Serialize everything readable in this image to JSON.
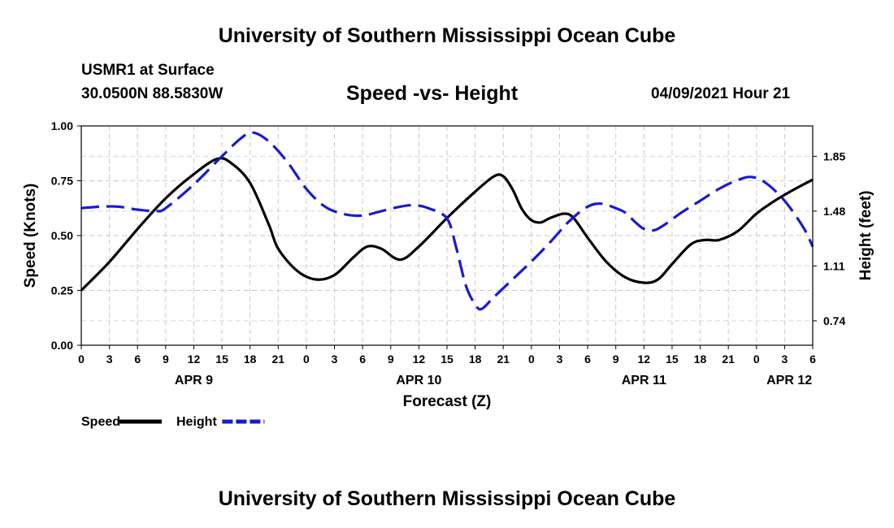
{
  "header": {
    "title": "University of Southern Mississippi Ocean Cube",
    "station": "USMR1 at Surface",
    "coordinates": "30.0500N  88.5830W",
    "chart_title": "Speed -vs- Height",
    "run_time": "04/09/2021 Hour 21"
  },
  "footer": {
    "title": "University of Southern Mississippi Ocean Cube"
  },
  "chart_data": {
    "type": "line",
    "title": "Speed -vs- Height",
    "xlabel": "Forecast (Z)",
    "ylabel": "Speed (Knots)",
    "y2label": "Height (feet)",
    "x_unit": "forecast hours from APR 9 00Z",
    "xlim": [
      0,
      78
    ],
    "ylim": [
      0,
      1.0
    ],
    "y2lim": [
      0.575,
      2.055
    ],
    "grid": true,
    "x_ticks": [
      {
        "x": 0,
        "label": "0"
      },
      {
        "x": 3,
        "label": "3"
      },
      {
        "x": 6,
        "label": "6"
      },
      {
        "x": 9,
        "label": "9"
      },
      {
        "x": 12,
        "label": "12"
      },
      {
        "x": 15,
        "label": "15"
      },
      {
        "x": 18,
        "label": "18"
      },
      {
        "x": 21,
        "label": "21"
      },
      {
        "x": 24,
        "label": "0"
      },
      {
        "x": 27,
        "label": "3"
      },
      {
        "x": 30,
        "label": "6"
      },
      {
        "x": 33,
        "label": "9"
      },
      {
        "x": 36,
        "label": "12"
      },
      {
        "x": 39,
        "label": "15"
      },
      {
        "x": 42,
        "label": "18"
      },
      {
        "x": 45,
        "label": "21"
      },
      {
        "x": 48,
        "label": "0"
      },
      {
        "x": 51,
        "label": "3"
      },
      {
        "x": 54,
        "label": "6"
      },
      {
        "x": 57,
        "label": "9"
      },
      {
        "x": 60,
        "label": "12"
      },
      {
        "x": 63,
        "label": "15"
      },
      {
        "x": 66,
        "label": "18"
      },
      {
        "x": 69,
        "label": "21"
      },
      {
        "x": 72,
        "label": "0"
      },
      {
        "x": 75,
        "label": "3"
      },
      {
        "x": 78,
        "label": "6"
      }
    ],
    "date_labels": [
      {
        "x": 12,
        "label": "APR 9"
      },
      {
        "x": 36,
        "label": "APR 10"
      },
      {
        "x": 60,
        "label": "APR 11"
      },
      {
        "x": 75.5,
        "label": "APR 12"
      }
    ],
    "y_ticks": [
      {
        "v": 0.0,
        "label": "0.00"
      },
      {
        "v": 0.25,
        "label": "0.25"
      },
      {
        "v": 0.5,
        "label": "0.50"
      },
      {
        "v": 0.75,
        "label": "0.75"
      },
      {
        "v": 1.0,
        "label": "1.00"
      }
    ],
    "y2_ticks": [
      {
        "v": 0.74,
        "label": "0.74"
      },
      {
        "v": 1.11,
        "label": "1.11"
      },
      {
        "v": 1.48,
        "label": "1.48"
      },
      {
        "v": 1.85,
        "label": "1.85"
      }
    ],
    "series": [
      {
        "name": "Speed",
        "axis": "left",
        "color": "#000000",
        "dash": "solid",
        "points": [
          [
            0,
            0.25
          ],
          [
            3,
            0.38
          ],
          [
            6,
            0.53
          ],
          [
            9,
            0.67
          ],
          [
            12,
            0.78
          ],
          [
            14.5,
            0.85
          ],
          [
            16,
            0.83
          ],
          [
            18,
            0.74
          ],
          [
            20,
            0.55
          ],
          [
            21,
            0.44
          ],
          [
            23,
            0.34
          ],
          [
            25,
            0.3
          ],
          [
            27,
            0.32
          ],
          [
            29,
            0.4
          ],
          [
            30.5,
            0.45
          ],
          [
            32,
            0.44
          ],
          [
            34,
            0.39
          ],
          [
            36,
            0.45
          ],
          [
            39,
            0.58
          ],
          [
            42,
            0.7
          ],
          [
            44,
            0.77
          ],
          [
            45,
            0.77
          ],
          [
            46,
            0.71
          ],
          [
            47,
            0.62
          ],
          [
            48,
            0.57
          ],
          [
            49,
            0.56
          ],
          [
            50,
            0.58
          ],
          [
            51.5,
            0.6
          ],
          [
            52.5,
            0.58
          ],
          [
            54,
            0.49
          ],
          [
            56,
            0.38
          ],
          [
            58,
            0.31
          ],
          [
            60,
            0.285
          ],
          [
            61.5,
            0.3
          ],
          [
            63,
            0.37
          ],
          [
            65,
            0.46
          ],
          [
            66.5,
            0.48
          ],
          [
            68,
            0.48
          ],
          [
            70,
            0.52
          ],
          [
            72,
            0.6
          ],
          [
            74,
            0.66
          ],
          [
            76,
            0.71
          ],
          [
            78,
            0.755
          ]
        ]
      },
      {
        "name": "Height",
        "axis": "right",
        "color": "#1a1ad0",
        "dash": "dashed",
        "points": [
          [
            0,
            1.5
          ],
          [
            2,
            1.51
          ],
          [
            4,
            1.51
          ],
          [
            6,
            1.49
          ],
          [
            8,
            1.48
          ],
          [
            9,
            1.5
          ],
          [
            12,
            1.66
          ],
          [
            15,
            1.85
          ],
          [
            17,
            1.97
          ],
          [
            18.3,
            2.01
          ],
          [
            20,
            1.95
          ],
          [
            22,
            1.81
          ],
          [
            24,
            1.63
          ],
          [
            26,
            1.51
          ],
          [
            28,
            1.46
          ],
          [
            30,
            1.45
          ],
          [
            32,
            1.48
          ],
          [
            34,
            1.51
          ],
          [
            35.5,
            1.52
          ],
          [
            37,
            1.5
          ],
          [
            39,
            1.43
          ],
          [
            40,
            1.23
          ],
          [
            41,
            0.98
          ],
          [
            42,
            0.85
          ],
          [
            42.7,
            0.82
          ],
          [
            44,
            0.9
          ],
          [
            46,
            1.02
          ],
          [
            48,
            1.14
          ],
          [
            50,
            1.27
          ],
          [
            52,
            1.41
          ],
          [
            54,
            1.51
          ],
          [
            55.5,
            1.53
          ],
          [
            57,
            1.5
          ],
          [
            58,
            1.47
          ],
          [
            59,
            1.41
          ],
          [
            60,
            1.36
          ],
          [
            61,
            1.35
          ],
          [
            62,
            1.38
          ],
          [
            64,
            1.47
          ],
          [
            66,
            1.55
          ],
          [
            68,
            1.63
          ],
          [
            70,
            1.69
          ],
          [
            71.5,
            1.71
          ],
          [
            73,
            1.67
          ],
          [
            75,
            1.55
          ],
          [
            77,
            1.37
          ],
          [
            78,
            1.24
          ]
        ]
      }
    ],
    "legend": [
      {
        "label": "Speed",
        "color": "#000000",
        "dash": "solid"
      },
      {
        "label": "Height",
        "color": "#1a1ad0",
        "dash": "dashed"
      }
    ],
    "legend_position": "bottom-left"
  }
}
